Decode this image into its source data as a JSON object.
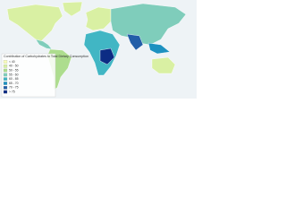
{
  "title": "Contribution of Carbohydrates to Total Dietary Consumption",
  "legend": {
    "items": [
      {
        "label": "< 40",
        "color": "#f7fcb9"
      },
      {
        "label": "40 - 50",
        "color": "#d9f0a3"
      },
      {
        "label": "50 - 55",
        "color": "#addd8e"
      },
      {
        "label": "55 - 60",
        "color": "#7fcdbb"
      },
      {
        "label": "60 - 65",
        "color": "#41b6c4"
      },
      {
        "label": "65 - 70",
        "color": "#1d91c0"
      },
      {
        "label": "70 - 75",
        "color": "#225ea8"
      },
      {
        "label": "> 75",
        "color": "#0c2c84"
      }
    ]
  }
}
